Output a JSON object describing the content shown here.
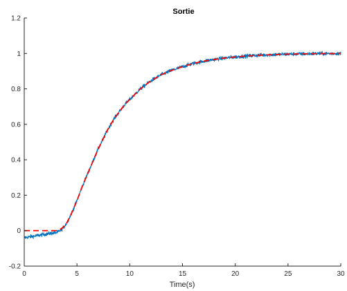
{
  "chart_data": {
    "type": "line",
    "title": "Sortie",
    "xlabel": "Time(s)",
    "ylabel": "",
    "xlim": [
      0,
      30
    ],
    "ylim": [
      -0.2,
      1.2
    ],
    "x_ticks": [
      0,
      5,
      10,
      15,
      20,
      25,
      30
    ],
    "y_ticks": [
      -0.2,
      0,
      0.2,
      0.4,
      0.6,
      0.8,
      1,
      1.2
    ],
    "x_tick_labels": [
      "0",
      "5",
      "10",
      "15",
      "20",
      "25",
      "30"
    ],
    "y_tick_labels": [
      "-0.2",
      "0",
      "0.2",
      "0.4",
      "0.6",
      "0.8",
      "1",
      "1.2"
    ],
    "grid": false,
    "series": [
      {
        "style": "solid-noisy",
        "color": "#0072BD",
        "x": [
          0,
          0.5,
          1,
          1.5,
          2,
          2.5,
          3,
          3.3,
          3.6,
          4,
          4.5,
          5,
          5.5,
          6,
          6.5,
          7,
          7.5,
          8,
          8.5,
          9,
          9.5,
          10,
          11,
          12,
          13,
          14,
          15,
          16,
          17,
          18,
          19,
          20,
          21,
          22,
          23,
          24,
          25,
          26,
          27,
          28,
          29,
          30
        ],
        "y": [
          -0.04,
          -0.035,
          -0.03,
          -0.025,
          -0.02,
          -0.015,
          -0.012,
          -0.005,
          0.01,
          0.04,
          0.1,
          0.17,
          0.25,
          0.32,
          0.39,
          0.46,
          0.52,
          0.58,
          0.63,
          0.67,
          0.71,
          0.74,
          0.8,
          0.845,
          0.88,
          0.905,
          0.925,
          0.943,
          0.956,
          0.966,
          0.974,
          0.98,
          0.985,
          0.989,
          0.992,
          0.994,
          0.996,
          0.997,
          0.998,
          0.999,
          0.999,
          1.0
        ],
        "noise": 0.01
      },
      {
        "style": "dashed",
        "color": "#FF0000",
        "x": [
          0,
          0.5,
          1,
          1.5,
          2,
          2.5,
          3,
          3.3,
          3.6,
          4,
          4.5,
          5,
          5.5,
          6,
          6.5,
          7,
          7.5,
          8,
          8.5,
          9,
          9.5,
          10,
          11,
          12,
          13,
          14,
          15,
          16,
          17,
          18,
          19,
          20,
          21,
          22,
          23,
          24,
          25,
          26,
          27,
          28,
          29,
          30
        ],
        "y": [
          0,
          0,
          0,
          0,
          0,
          0,
          0,
          0.003,
          0.015,
          0.04,
          0.1,
          0.17,
          0.25,
          0.32,
          0.39,
          0.46,
          0.52,
          0.58,
          0.63,
          0.67,
          0.71,
          0.74,
          0.8,
          0.845,
          0.88,
          0.905,
          0.925,
          0.943,
          0.956,
          0.966,
          0.974,
          0.98,
          0.985,
          0.989,
          0.992,
          0.994,
          0.996,
          0.997,
          0.998,
          0.999,
          0.999,
          1.0
        ]
      }
    ]
  }
}
